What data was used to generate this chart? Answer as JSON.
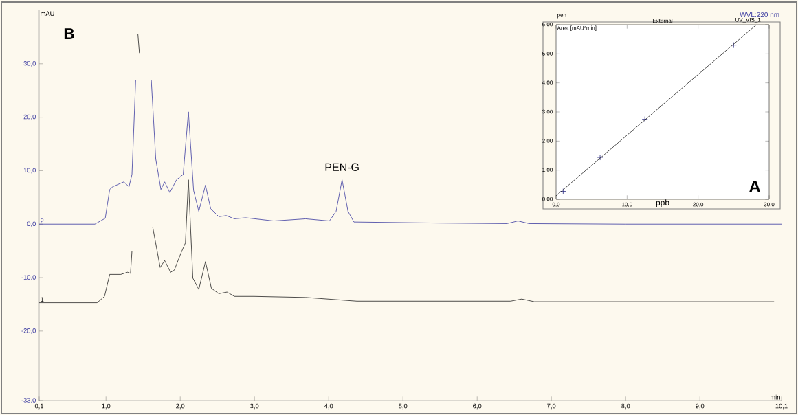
{
  "chart_data": [
    {
      "type": "line",
      "xlabel": "min",
      "ylabel": "mAU",
      "xlim": [
        0.1,
        10.1
      ],
      "ylim": [
        -33,
        40
      ],
      "xticks": [
        {
          "value": 0.1,
          "label": "0,1"
        },
        {
          "value": 1,
          "label": "1,0"
        },
        {
          "value": 2,
          "label": "2,0"
        },
        {
          "value": 3,
          "label": "3,0"
        },
        {
          "value": 4,
          "label": "4,0"
        },
        {
          "value": 5,
          "label": "5,0"
        },
        {
          "value": 6,
          "label": "6,0"
        },
        {
          "value": 7,
          "label": "7,0"
        },
        {
          "value": 8,
          "label": "8,0"
        },
        {
          "value": 9,
          "label": "9,0"
        },
        {
          "value": 10.1,
          "label": "10,1"
        }
      ],
      "yticks": [
        {
          "value": -33,
          "label": "-33,0"
        },
        {
          "value": -20,
          "label": "-20,0"
        },
        {
          "value": -10,
          "label": "-10,0"
        },
        {
          "value": 0,
          "label": "0,0"
        },
        {
          "value": 10,
          "label": "10,0"
        },
        {
          "value": 20,
          "label": "20,0"
        },
        {
          "value": 30,
          "label": "30,0"
        }
      ],
      "series": [
        {
          "name": "2",
          "color": "#3a3aa0",
          "x": [
            0.1,
            0.85,
            0.99,
            1.05,
            1.09,
            1.24,
            1.31,
            1.35,
            1.4,
            1.43,
            1.52,
            1.56,
            1.61,
            1.67,
            1.74,
            1.79,
            1.86,
            1.95,
            2.04,
            2.11,
            2.18,
            2.25,
            2.34,
            2.41,
            2.52,
            2.62,
            2.73,
            2.88,
            3.26,
            3.69,
            4.01,
            4.1,
            4.18,
            4.26,
            4.34,
            5.5,
            6.4,
            6.55,
            6.7,
            8.0,
            10.1
          ],
          "values": [
            0,
            0,
            1.1,
            6.5,
            7.0,
            7.9,
            7.0,
            9.3,
            27,
            null,
            null,
            null,
            27,
            12.2,
            6.5,
            7.9,
            5.9,
            8.3,
            9.3,
            21.0,
            6.3,
            2.4,
            7.3,
            2.9,
            1.4,
            1.6,
            1.0,
            1.2,
            0.6,
            1.0,
            0.6,
            2.4,
            8.3,
            2.4,
            0.4,
            0.2,
            0.1,
            0.6,
            0.1,
            0.0,
            0.0
          ]
        },
        {
          "name": "1",
          "color": "#222222",
          "x": [
            0.1,
            0.88,
            0.98,
            1.05,
            1.2,
            1.29,
            1.33,
            1.35,
            1.4,
            1.43,
            1.45,
            1.47,
            1.55,
            1.63,
            1.73,
            1.79,
            1.87,
            1.92,
            2.01,
            2.07,
            2.11,
            2.17,
            2.25,
            2.34,
            2.42,
            2.52,
            2.63,
            2.73,
            2.99,
            3.69,
            4.38,
            6.45,
            6.6,
            6.77,
            10.0
          ],
          "values": [
            -14.7,
            -14.7,
            -13.5,
            -9.4,
            -9.4,
            -9.0,
            -9.2,
            -5,
            null,
            35.5,
            32,
            null,
            null,
            -0.6,
            -8.1,
            -6.8,
            -9.0,
            -8.6,
            -5.4,
            -3.5,
            8.3,
            -10.1,
            -12.2,
            -7.0,
            -12.0,
            -13.0,
            -12.7,
            -13.5,
            -13.5,
            -13.7,
            -14.4,
            -14.4,
            -14.0,
            -14.5,
            -14.5
          ]
        }
      ],
      "annotations": [
        "B",
        {
          "text": "PEN-G",
          "x": 4.18,
          "y": 8.3
        },
        "WVL:220 nm"
      ]
    },
    {
      "type": "scatter",
      "title": "pen",
      "xlabel": "ppb",
      "ylabel": "Area [mAU*min]",
      "xlim": [
        0,
        30
      ],
      "ylim": [
        0,
        6
      ],
      "xticks": [
        {
          "value": 0,
          "label": "0,0"
        },
        {
          "value": 10,
          "label": "10,0"
        },
        {
          "value": 20,
          "label": "20,0"
        },
        {
          "value": 30,
          "label": "30,0"
        }
      ],
      "yticks": [
        {
          "value": 0,
          "label": "0,00"
        },
        {
          "value": 1,
          "label": "1,00"
        },
        {
          "value": 2,
          "label": "2,00"
        },
        {
          "value": 3,
          "label": "3,00"
        },
        {
          "value": 4,
          "label": "4,00"
        },
        {
          "value": 5,
          "label": "5,00"
        },
        {
          "value": 6,
          "label": "6,00"
        }
      ],
      "series": [
        {
          "color": "#2a2a80",
          "marker": "cross",
          "x": [
            1,
            6.2,
            12.5,
            25
          ],
          "values": [
            0.27,
            1.44,
            2.75,
            5.3
          ]
        },
        {
          "type": "line",
          "color": "#222222",
          "x": [
            0,
            28.2
          ],
          "values": [
            0.12,
            6.0
          ]
        }
      ],
      "annotations": [
        "External",
        "UV_VIS_1",
        "A"
      ]
    }
  ]
}
